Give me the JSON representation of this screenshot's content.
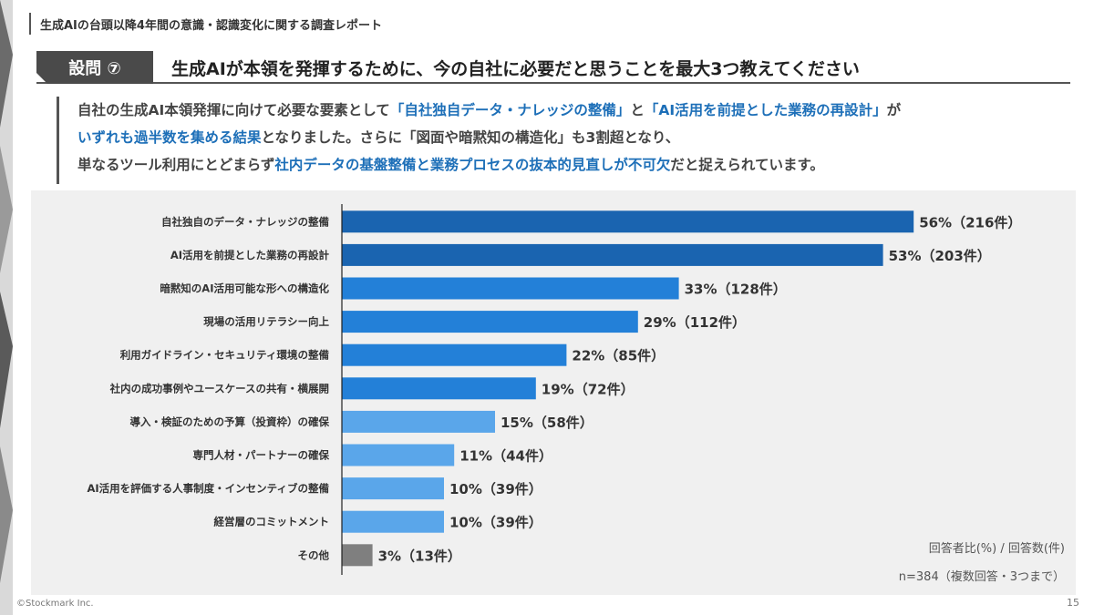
{
  "header": {
    "title": "生成AIの台頭以降4年間の意識・認識変化に関する調査レポート"
  },
  "question": {
    "badge": "設問 ⑦",
    "title": "生成AIが本領を発揮するために、今の自社に必要だと思うことを最大3つ教えてください"
  },
  "summary": {
    "line1_a": "自社の生成AI本領発揮に向けて必要な要素として",
    "line1_b": "「自社独自データ・ナレッジの整備」",
    "line1_c": "と",
    "line1_d": "「AI活用を前提とした業務の再設計」",
    "line1_e": "が",
    "line2_a": "いずれも過半数を集める結果",
    "line2_b": "となりました。さらに「図面や暗黙知の構造化」も3割超となり、",
    "line3_a": "単なるツール利用にとどまらず",
    "line3_b": "社内データの基盤整備と業務プロセスの抜本的見直しが不可欠",
    "line3_c": "だと捉えられています。"
  },
  "chart_data": {
    "type": "bar",
    "orientation": "horizontal",
    "categories": [
      "自社独自のデータ・ナレッジの整備",
      "AI活用を前提とした業務の再設計",
      "暗黙知のAI活用可能な形への構造化",
      "現場の活用リテラシー向上",
      "利用ガイドライン・セキュリティ環境の整備",
      "社内の成功事例やユースケースの共有・横展開",
      "導入・検証のための予算（投資枠）の確保",
      "専門人材・パートナーの確保",
      "AI活用を評価する人事制度・インセンティブの整備",
      "経営層のコミットメント",
      "その他"
    ],
    "values": [
      56,
      53,
      33,
      29,
      22,
      19,
      15,
      11,
      10,
      10,
      3
    ],
    "counts": [
      216,
      203,
      128,
      112,
      85,
      72,
      58,
      44,
      39,
      39,
      13
    ],
    "labels": [
      "56%（216件）",
      "53%（203件）",
      "33%（128件）",
      "29%（112件）",
      "22%（85件）",
      "19%（72件）",
      "15%（58件）",
      "11%（44件）",
      "10%（39件）",
      "10%（39件）",
      "3%（13件）"
    ],
    "colors": [
      "#1a64b0",
      "#1a64b0",
      "#2380d8",
      "#2380d8",
      "#2380d8",
      "#2380d8",
      "#5aa6ea",
      "#5aa6ea",
      "#5aa6ea",
      "#5aa6ea",
      "#7f7f7f"
    ],
    "grid": false
  },
  "notes": {
    "legend": "回答者比(%) / 回答数(件)",
    "n": "n=384（複数回答・3つまで）"
  },
  "footer": {
    "copyright": "©Stockmark Inc.",
    "page": "15"
  }
}
